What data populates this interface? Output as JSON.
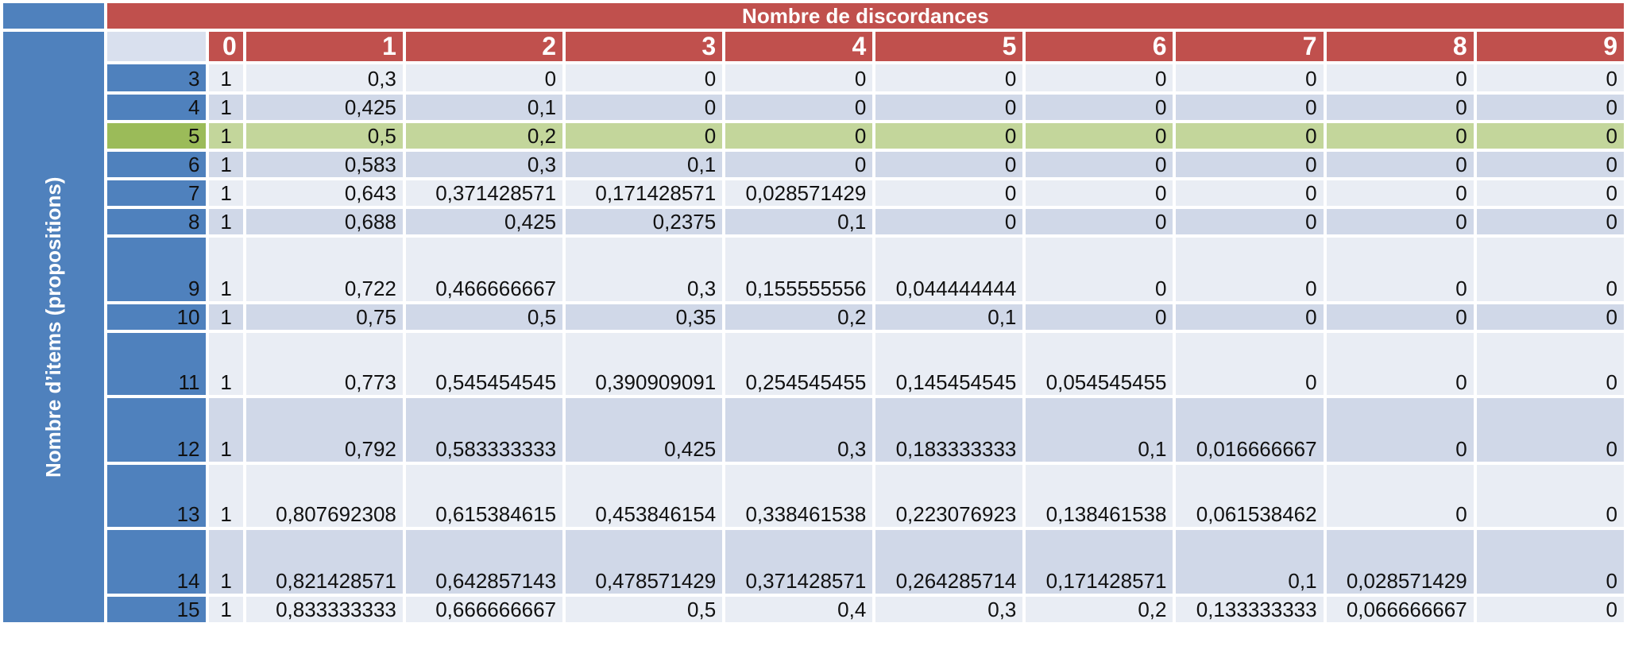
{
  "title_columns": "Nombre de discordances",
  "title_rows": "Nombre d’items (propositions)",
  "column_headers": [
    "0",
    "1",
    "2",
    "3",
    "4",
    "5",
    "6",
    "7",
    "8",
    "9"
  ],
  "highlight_row": "5",
  "rows": [
    {
      "label": "3",
      "values": [
        "1",
        "0,3",
        "0",
        "0",
        "0",
        "0",
        "0",
        "0",
        "0",
        "0"
      ]
    },
    {
      "label": "4",
      "values": [
        "1",
        "0,425",
        "0,1",
        "0",
        "0",
        "0",
        "0",
        "0",
        "0",
        "0"
      ]
    },
    {
      "label": "5",
      "values": [
        "1",
        "0,5",
        "0,2",
        "0",
        "0",
        "0",
        "0",
        "0",
        "0",
        "0"
      ]
    },
    {
      "label": "6",
      "values": [
        "1",
        "0,583",
        "0,3",
        "0,1",
        "0",
        "0",
        "0",
        "0",
        "0",
        "0"
      ]
    },
    {
      "label": "7",
      "values": [
        "1",
        "0,643",
        "0,371428571",
        "0,171428571",
        "0,028571429",
        "0",
        "0",
        "0",
        "0",
        "0"
      ]
    },
    {
      "label": "8",
      "values": [
        "1",
        "0,688",
        "0,425",
        "0,2375",
        "0,1",
        "0",
        "0",
        "0",
        "0",
        "0"
      ]
    },
    {
      "label": "9",
      "values": [
        "1",
        "0,722",
        "0,466666667",
        "0,3",
        "0,155555556",
        "0,044444444",
        "0",
        "0",
        "0",
        "0"
      ]
    },
    {
      "label": "10",
      "values": [
        "1",
        "0,75",
        "0,5",
        "0,35",
        "0,2",
        "0,1",
        "0",
        "0",
        "0",
        "0"
      ]
    },
    {
      "label": "11",
      "values": [
        "1",
        "0,773",
        "0,545454545",
        "0,390909091",
        "0,254545455",
        "0,145454545",
        "0,054545455",
        "0",
        "0",
        "0"
      ]
    },
    {
      "label": "12",
      "values": [
        "1",
        "0,792",
        "0,583333333",
        "0,425",
        "0,3",
        "0,183333333",
        "0,1",
        "0,016666667",
        "0",
        "0"
      ]
    },
    {
      "label": "13",
      "values": [
        "1",
        "0,807692308",
        "0,615384615",
        "0,453846154",
        "0,338461538",
        "0,223076923",
        "0,138461538",
        "0,061538462",
        "0",
        "0"
      ]
    },
    {
      "label": "14",
      "values": [
        "1",
        "0,821428571",
        "0,642857143",
        "0,478571429",
        "0,371428571",
        "0,264285714",
        "0,171428571",
        "0,1",
        "0,028571429",
        "0"
      ]
    },
    {
      "label": "15",
      "values": [
        "1",
        "0,833333333",
        "0,666666667",
        "0,5",
        "0,4",
        "0,3",
        "0,2",
        "0,133333333",
        "0,066666667",
        "0"
      ]
    }
  ]
}
